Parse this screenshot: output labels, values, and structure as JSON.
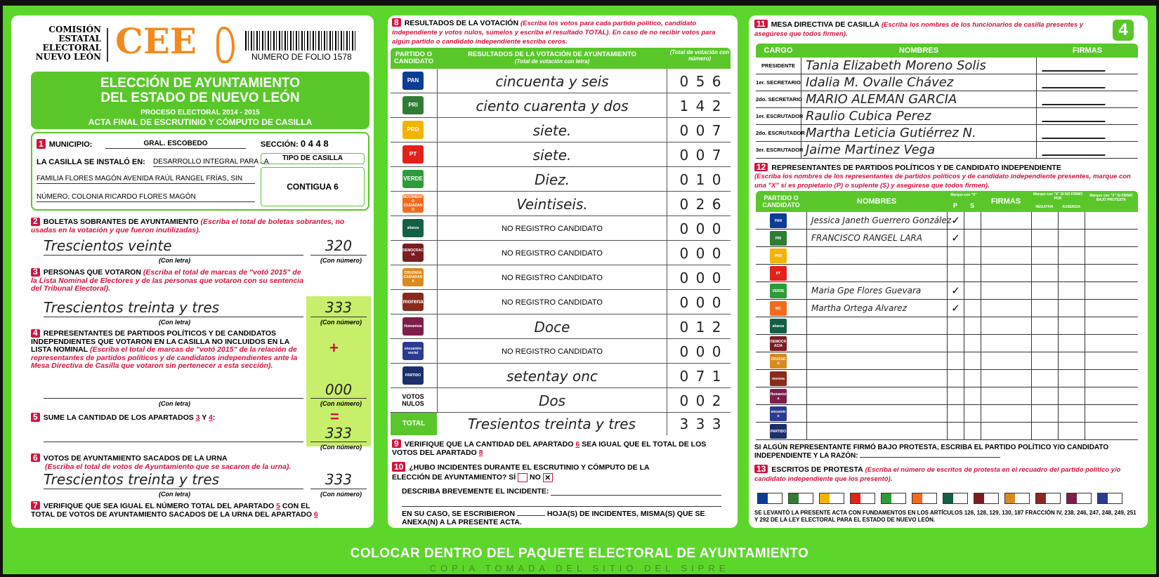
{
  "header": {
    "org_line1": "COMISIÓN",
    "org_line2": "ESTATAL",
    "org_line3": "ELECTORAL",
    "org_line4": "NUEVO LEÓN",
    "logo": "CEE",
    "folio": "NUMERO DE FOLIO 1578",
    "title1": "ELECCIÓN DE AYUNTAMIENTO",
    "title2": "DEL ESTADO DE NUEVO LEÓN",
    "process": "PROCESO ELECTORAL 2014 - 2015",
    "acta": "ACTA FINAL DE ESCRUTINIO Y CÓMPUTO DE CASILLA",
    "page_number": "4"
  },
  "s1": {
    "num": "1",
    "municipio_label": "MUNICIPIO:",
    "municipio": "GRAL. ESCOBEDO",
    "seccion_label": "SECCIÓN:",
    "seccion": "0 4 4 8",
    "instalo_label": "LA CASILLA SE INSTALÓ EN:",
    "instalo_1": "DESARROLLO INTEGRAL PARA LA",
    "instalo_2": "FAMILIA FLORES MAGÓN AVENIDA RAÚL RANGEL FRÍAS, SIN",
    "instalo_3": "NÚMERO, COLONIA RICARDO FLORES MAGÓN",
    "tipo_label": "TIPO DE CASILLA",
    "tipo": "CONTIGUA 6"
  },
  "labels": {
    "con_letra": "(Con letra)",
    "con_numero": "(Con número)",
    "plus": "+",
    "equals": "="
  },
  "s2": {
    "num": "2",
    "title": "BOLETAS SOBRANTES DE AYUNTAMIENTO",
    "note": "(Escriba el total de boletas sobrantes, no usadas en la votación y que fueron inutilizadas).",
    "letra": "Trescientos veinte",
    "numero": "320"
  },
  "s3": {
    "num": "3",
    "title": "PERSONAS QUE VOTARON",
    "note": "(Escriba el total de marcas de \"votó 2015\" de la Lista Nominal de Electores y de las personas que votaron con su sentencia del Tribunal Electoral).",
    "letra": "Trescientos treinta y tres",
    "numero": "333"
  },
  "s4": {
    "num": "4",
    "title": "REPRESENTANTES DE PARTIDOS POLÍTICOS Y DE CANDIDATOS INDEPENDIENTES QUE VOTARON EN LA CASILLA NO INCLUIDOS EN LA LISTA NOMINAL",
    "note": "(Escriba el total de marcas de \"votó 2015\" de la relación de representantes de partidos políticos y de candidatos independientes ante la Mesa Directiva de Casilla que votaron sin pertenecer a esta sección).",
    "letra": "",
    "numero": "000"
  },
  "s5": {
    "num": "5",
    "title_a": "SUME LA CANTIDAD DE LOS APARTADOS",
    "ref1": "3",
    "y": "Y",
    "ref2": "4",
    "colon": ":",
    "numero": "333"
  },
  "s6": {
    "num": "6",
    "title": "VOTOS DE AYUNTAMIENTO SACADOS DE LA URNA",
    "note": "(Escriba el total de votos de Ayuntamiento que se sacaron de la urna).",
    "letra": "Trescientos treinta y tres",
    "numero": "333"
  },
  "s7": {
    "num": "7",
    "text_a": "VERIFIQUE QUE SEA IGUAL EL NÚMERO TOTAL DEL APARTADO",
    "ref1": "5",
    "text_b": "CON EL TOTAL DE VOTOS DE AYUNTAMIENTO SACADOS DE LA URNA DEL APARTADO",
    "ref2": "6"
  },
  "s8": {
    "num": "8",
    "title": "RESULTADOS DE LA VOTACIÓN",
    "note": "(Escriba los votos para cada partido político, candidato independiente y votos nulos, súmelos y escriba el resultado TOTAL). En caso de no recibir votos para algún partido o candidato independiente escriba ceros.",
    "col1": "PARTIDO O CANDIDATO",
    "col2": "RESULTADOS DE LA VOTACIÓN DE AYUNTAMIENTO",
    "col2_sub": "(Total de votación con letra)",
    "col3": "(Total de votación con número)",
    "rows": [
      {
        "party": "PAN",
        "color": "#0b3c96",
        "letra": "cincuenta y seis",
        "numero": "0 5 6"
      },
      {
        "party": "PRI",
        "color": "#2f7d32",
        "letra": "ciento cuarenta y dos",
        "numero": "1 4 2"
      },
      {
        "party": "PRD",
        "color": "#f2b400",
        "letra": "siete.",
        "numero": "0 0 7"
      },
      {
        "party": "PT",
        "color": "#e3211b",
        "letra": "siete.",
        "numero": "0 0 7"
      },
      {
        "party": "VERDE",
        "color": "#2e9b3a",
        "letra": "Diez.",
        "numero": "0 1 0"
      },
      {
        "party": "MOVIMIENTO CIUDADANO",
        "color": "#f26b1d",
        "letra": "Veintiseis.",
        "numero": "0 2 6"
      },
      {
        "party": "alianza",
        "color": "#155f45",
        "letra": "NO REGISTRO CANDIDATO",
        "numero": "0 0 0"
      },
      {
        "party": "DEMOCRACIA",
        "color": "#7a1e22",
        "letra": "NO REGISTRO CANDIDATO",
        "numero": "0 0 0"
      },
      {
        "party": "CRUZADA CIUDADANA",
        "color": "#d98a1f",
        "letra": "NO REGISTRO CANDIDATO",
        "numero": "0 0 0"
      },
      {
        "party": "morena",
        "color": "#8b2a1c",
        "letra": "NO REGISTRO CANDIDATO",
        "numero": "0 0 0"
      },
      {
        "party": "Humanista",
        "color": "#7c1d4a",
        "letra": "Doce",
        "numero": "0 1 2"
      },
      {
        "party": "encuentro social",
        "color": "#2b3b8f",
        "letra": "NO REGISTRO CANDIDATO",
        "numero": "0 0 0"
      },
      {
        "party": "PARTIDO",
        "color": "#1c2f6b",
        "letra": "setentay onc",
        "numero": "0 7 1"
      },
      {
        "party": "VOTOS NULOS",
        "color": "",
        "letra": "Dos",
        "numero": "0 0 2"
      }
    ],
    "total_label": "TOTAL",
    "total_letra": "Tresientos treinta y tres",
    "total_numero": "3 3 3"
  },
  "s9": {
    "num": "9",
    "text_a": "VERIFIQUE QUE LA CANTIDAD DEL APARTADO",
    "ref1": "6",
    "text_b": "SEA IGUAL QUE EL TOTAL DE LOS VOTOS DEL APARTADO",
    "ref2": "8"
  },
  "s10": {
    "num": "10",
    "question": "¿HUBO INCIDENTES DURANTE EL ESCRUTINIO Y CÓMPUTO DE LA ELECCIÓN DE AYUNTAMIENTO?",
    "si": "SÍ",
    "no": "NO",
    "answer": "NO",
    "describe": "DESCRIBA BREVEMENTE EL INCIDENTE:",
    "hojas_a": "EN SU CASO, SE ESCRIBIERON",
    "hojas_b": "HOJA(S) DE INCIDENTES, MISMA(S) QUE SE ANEXA(N) A LA PRESENTE ACTA."
  },
  "s11": {
    "num": "11",
    "title": "MESA DIRECTIVA DE CASILLA",
    "note": "(Escriba los nombres de los funcionarios de casilla presentes y asegúrese que todos firmen).",
    "col_cargo": "CARGO",
    "col_nombres": "NOMBRES",
    "col_firmas": "FIRMAS",
    "rows": [
      {
        "cargo": "PRESIDENTE",
        "nombre": "Tania Elizabeth Moreno Solis"
      },
      {
        "cargo": "1er. SECRETARIO",
        "nombre": "Idalia M. Ovalle Chávez"
      },
      {
        "cargo": "2do. SECRETARIO",
        "nombre": "MARIO ALEMAN GARCIA"
      },
      {
        "cargo": "1er. ESCRUTADOR",
        "nombre": "Raulio Cubica Perez"
      },
      {
        "cargo": "2do. ESCRUTADOR",
        "nombre": "Martha Leticia Gutiérrez N."
      },
      {
        "cargo": "3er. ESCRUTADOR",
        "nombre": "Jaime Martinez Vega"
      }
    ]
  },
  "s12": {
    "num": "12",
    "title": "REPRESENTANTES DE PARTIDOS POLÍTICOS Y DE CANDIDATO INDEPENDIENTE",
    "note": "(Escriba los nombres de los representantes de partidos políticos y de candidato independiente presentes, marque con una \"X\" si es propietario (P) o suplente (S) y asegúrese que todos firmen).",
    "col_partido": "PARTIDO O CANDIDATO",
    "col_nombres": "NOMBRES",
    "col_marque": "Marque con \"X\"",
    "col_p": "P",
    "col_s": "S",
    "col_firmas": "FIRMAS",
    "col_nofirmo": "Marque con \"X\" SI NO FIRMÓ POR",
    "col_negativa": "NEGATIVA",
    "col_ausencia": "AUSENCIA",
    "col_protesta": "Marque con \"X\" SI FIRMÓ BAJO PROTESTA",
    "rows": [
      {
        "party": "PAN",
        "color": "#0b3c96",
        "nombre": "Jessica Janeth Guerrero González",
        "p": "✓"
      },
      {
        "party": "PRI",
        "color": "#2f7d32",
        "nombre": "FRANCISCO RANGEL LARA",
        "p": "✓"
      },
      {
        "party": "PRD",
        "color": "#f2b400",
        "nombre": "",
        "p": ""
      },
      {
        "party": "PT",
        "color": "#e3211b",
        "nombre": "",
        "p": ""
      },
      {
        "party": "VERDE",
        "color": "#2e9b3a",
        "nombre": "Maria Gpe Flores Guevara",
        "p": "✓"
      },
      {
        "party": "MC",
        "color": "#f26b1d",
        "nombre": "Martha Ortega Alvarez",
        "p": "✓"
      },
      {
        "party": "alianza",
        "color": "#155f45",
        "nombre": "",
        "p": ""
      },
      {
        "party": "DEMOCRACIA",
        "color": "#7a1e22",
        "nombre": "",
        "p": ""
      },
      {
        "party": "CRUZADA",
        "color": "#d98a1f",
        "nombre": "",
        "p": ""
      },
      {
        "party": "morena",
        "color": "#8b2a1c",
        "nombre": "",
        "p": ""
      },
      {
        "party": "Humanista",
        "color": "#7c1d4a",
        "nombre": "",
        "p": ""
      },
      {
        "party": "encuentro",
        "color": "#2b3b8f",
        "nombre": "",
        "p": ""
      },
      {
        "party": "PARTIDO",
        "color": "#1c2f6b",
        "nombre": "",
        "p": ""
      }
    ],
    "protesta_text": "SI ALGÚN REPRESENTANTE FIRMÓ BAJO PROTESTA, ESCRIBA EL PARTIDO POLÍTICO Y/O CANDIDATO INDEPENDIENTE Y LA RAZÓN:"
  },
  "s13": {
    "num": "13",
    "title": "ESCRITOS DE PROTESTA",
    "note": "(Escriba el número de escritos de protesta en el recuadro del partido político y/o candidato independiente que los presentó).",
    "boxes": [
      "#0b3c96",
      "#2f7d32",
      "#f2b400",
      "#e3211b",
      "#2e9b3a",
      "#f26b1d",
      "#155f45",
      "#7a1e22",
      "#d98a1f",
      "#8b2a1c",
      "#7c1d4a",
      "#2b3b8f"
    ],
    "legal": "SE LEVANTÓ LA PRESENTE ACTA CON FUNDAMENTOS EN LOS ARTÍCULOS 126, 128, 129, 130, 187 FRACCIÓN IV, 238, 246, 247, 248, 249, 251 Y 292 DE LA LEY ELECTORAL PARA EL ESTADO DE NUEVO LEÓN."
  },
  "footer": "COLOCAR DENTRO DEL PAQUETE ELECTORAL DE AYUNTAMIENTO",
  "watermark": "COPIA TOMADA DEL SITIO DEL SIPRE"
}
